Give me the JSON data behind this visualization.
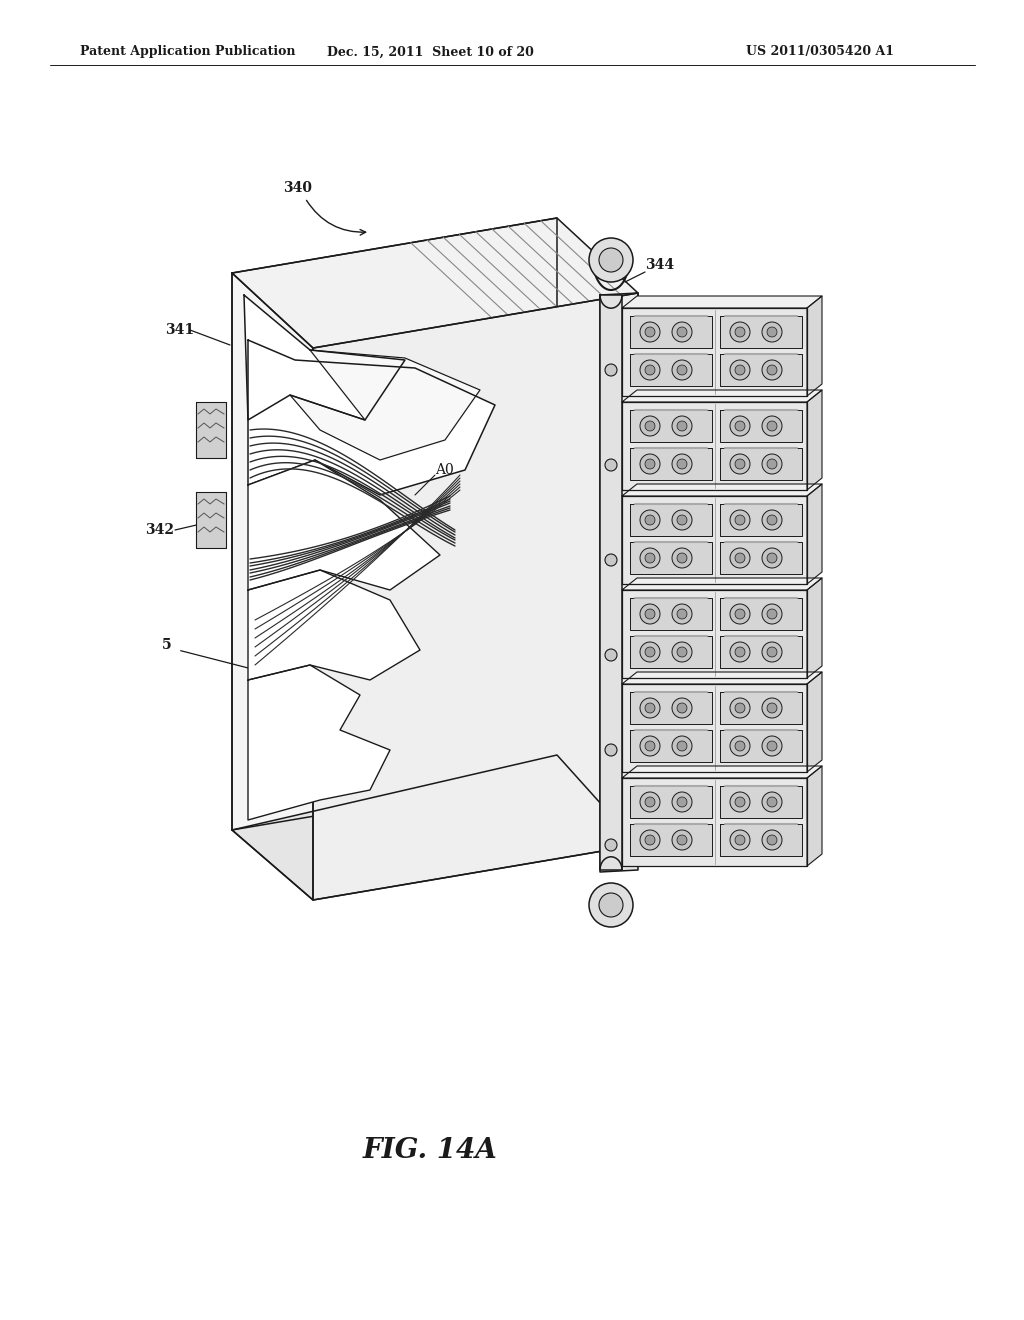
{
  "bg_color": "#ffffff",
  "line_color": "#1a1a1a",
  "lw": 1.1,
  "fig_width": 10.24,
  "fig_height": 13.2,
  "header_left": "Patent Application Publication",
  "header_mid": "Dec. 15, 2011  Sheet 10 of 20",
  "header_right": "US 2011/0305420 A1",
  "fig_label": "FIG. 14A",
  "label_fontsize": 10,
  "header_fontsize": 9,
  "figlabel_fontsize": 20
}
